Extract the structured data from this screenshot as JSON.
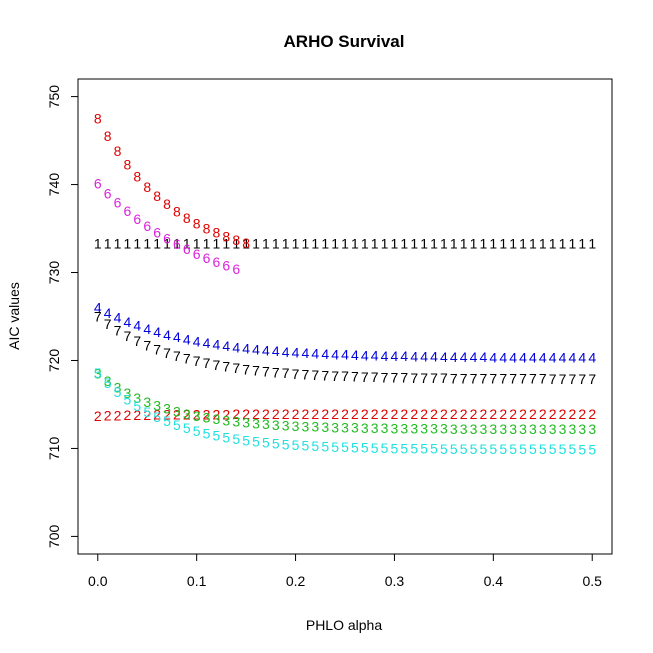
{
  "chart_data": {
    "type": "scatter",
    "title": "ARHO Survival",
    "xlabel": "PHLO alpha",
    "ylabel": "AIC values",
    "xlim": [
      -0.02,
      0.52
    ],
    "ylim": [
      698,
      752
    ],
    "xticks": [
      0,
      0.1,
      0.2,
      0.3,
      0.4,
      0.5
    ],
    "xtick_labels": [
      "0.0",
      "0.1",
      "0.2",
      "0.3",
      "0.4",
      "0.5"
    ],
    "yticks": [
      700,
      710,
      720,
      730,
      740,
      750
    ],
    "ytick_labels": [
      "700",
      "710",
      "720",
      "730",
      "740",
      "750"
    ],
    "grid": false,
    "series": [
      {
        "name": "1",
        "color": "#000000",
        "alpha_max": 0.5,
        "start": 733.3,
        "end": 733.3,
        "decay": 0.05
      },
      {
        "name": "2",
        "color": "#DF0000",
        "alpha_max": 0.5,
        "start": 713.7,
        "end": 713.9,
        "decay": 0.05
      },
      {
        "name": "3",
        "color": "#22BB22",
        "alpha_max": 0.5,
        "start": 718.5,
        "end": 712.2,
        "decay": 0.07
      },
      {
        "name": "4",
        "color": "#0000DD",
        "alpha_max": 0.5,
        "start": 726.0,
        "end": 720.3,
        "decay": 0.09
      },
      {
        "name": "5",
        "color": "#22E0E0",
        "alpha_max": 0.5,
        "start": 718.6,
        "end": 709.9,
        "decay": 0.07
      },
      {
        "name": "6",
        "color": "#DD22DD",
        "alpha_max": 0.14,
        "start": 740.1,
        "end": 726.0,
        "decay": 0.12
      },
      {
        "name": "7",
        "color": "#000000",
        "alpha_max": 0.5,
        "start": 725.0,
        "end": 717.9,
        "decay": 0.08
      },
      {
        "name": "8",
        "color": "#DF0000",
        "alpha_max": 0.15,
        "start": 747.5,
        "end": 730.8,
        "decay": 0.08
      }
    ]
  }
}
